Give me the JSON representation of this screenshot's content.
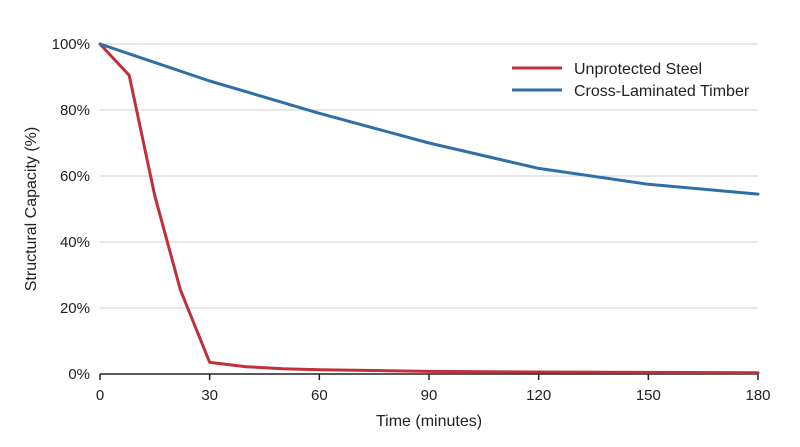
{
  "chart_data": {
    "type": "line",
    "xlabel": "Time (minutes)",
    "ylabel": "Structural Capacity (%)",
    "xlim": [
      0,
      180
    ],
    "ylim": [
      0,
      100
    ],
    "x_ticks": [
      0,
      30,
      60,
      90,
      120,
      150,
      180
    ],
    "y_ticks": [
      0,
      20,
      40,
      60,
      80,
      100
    ],
    "x_tick_labels": [
      "0",
      "30",
      "60",
      "90",
      "120",
      "150",
      "180"
    ],
    "y_tick_labels": [
      "0%",
      "20%",
      "40%",
      "60%",
      "80%",
      "100%"
    ],
    "grid": "horizontal",
    "legend_position": "top-right",
    "series": [
      {
        "name": "Unprotected Steel",
        "color": "#c0303a",
        "x": [
          0,
          8,
          15,
          22,
          30,
          40,
          50,
          60,
          90,
          120,
          150,
          180
        ],
        "y": [
          100,
          90.5,
          54,
          25.5,
          3.5,
          2.2,
          1.6,
          1.3,
          0.8,
          0.6,
          0.5,
          0.4
        ]
      },
      {
        "name": "Cross-Laminated Timber",
        "color": "#2e6fa8",
        "x": [
          0,
          30,
          60,
          90,
          120,
          150,
          180
        ],
        "y": [
          100,
          88.8,
          79,
          70,
          62.3,
          57.5,
          54.5
        ]
      }
    ]
  }
}
